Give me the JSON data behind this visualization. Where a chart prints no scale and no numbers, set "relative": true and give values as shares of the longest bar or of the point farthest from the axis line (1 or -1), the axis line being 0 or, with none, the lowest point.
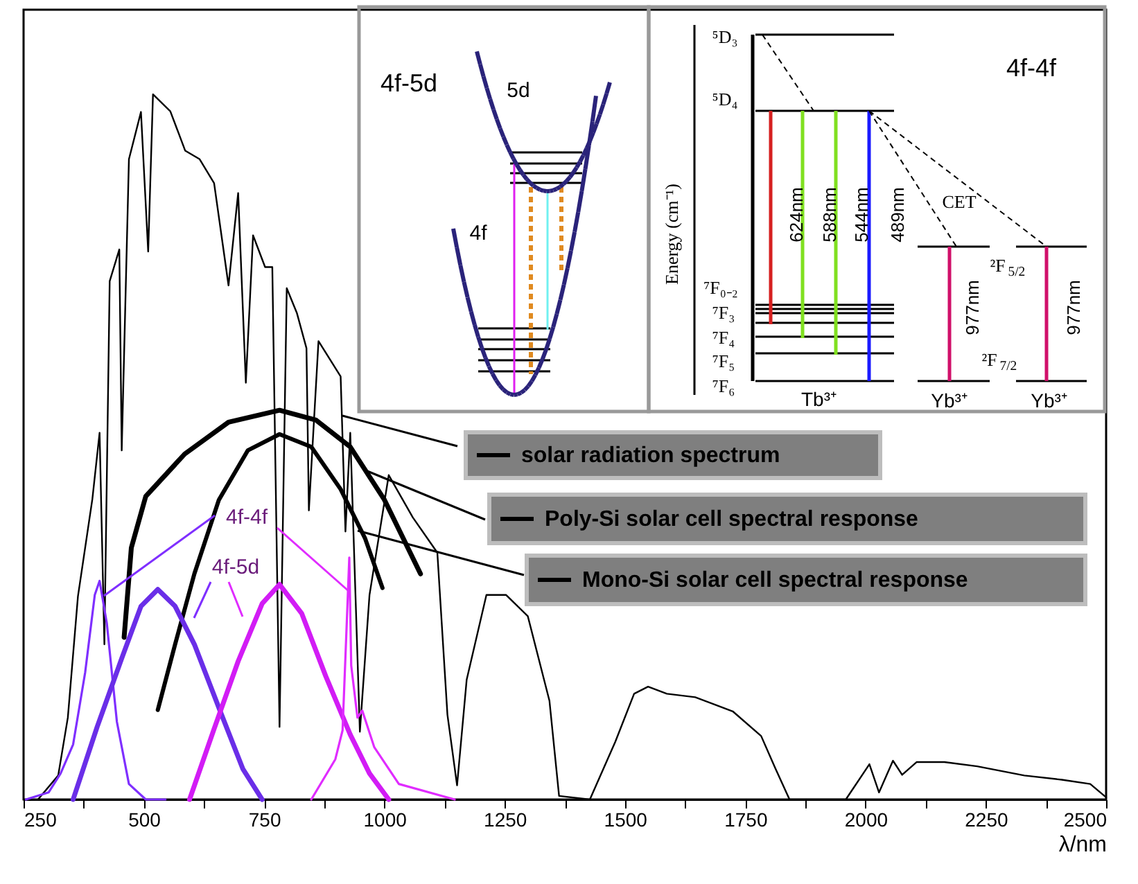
{
  "chart_data": {
    "type": "line",
    "relative": true,
    "xlabel": "λ/nm",
    "xlim": [
      250,
      2500
    ],
    "xticks": [
      250,
      {
        "value": 375,
        "label": null
      },
      500,
      {
        "value": 625,
        "label": null
      },
      750,
      {
        "value": 875,
        "label": null
      },
      1000,
      {
        "value": 1125,
        "label": null
      },
      1250,
      {
        "value": 1375,
        "label": null
      },
      1500,
      {
        "value": 1625,
        "label": null
      },
      1750,
      {
        "value": 1875,
        "label": null
      },
      2000,
      {
        "value": 2125,
        "label": null
      },
      2250,
      {
        "value": 2375,
        "label": null
      },
      2500
    ],
    "grid": false,
    "legend": "right",
    "marker": "none",
    "line_style": "solid",
    "series": [
      {
        "name": "solar radiation spectrum",
        "color": "#000000",
        "x": [
          280,
          322,
          342,
          363,
          393,
          408,
          418,
          429,
          449,
          454,
          469,
          494,
          509,
          519,
          555,
          586,
          616,
          646,
          676,
          696,
          712,
          727,
          752,
          767,
          782,
          797,
          818,
          838,
          843,
          863,
          909,
          919,
          929,
          949,
          969,
          1009,
          1059,
          1110,
          1131,
          1151,
          1171,
          1212,
          1253,
          1298,
          1343,
          1363,
          1427,
          1480,
          1519,
          1548,
          1587,
          1646,
          1724,
          1783,
          1812,
          1842,
          1959,
          2008,
          2028,
          2057,
          2076,
          2106,
          2164,
          2232,
          2330,
          2408,
          2467,
          2500
        ],
        "values": [
          0,
          0.034,
          0.116,
          0.288,
          0.426,
          0.52,
          0.22,
          0.735,
          0.78,
          0.495,
          0.908,
          0.975,
          0.777,
          1.0,
          0.976,
          0.92,
          0.908,
          0.874,
          0.729,
          0.86,
          0.591,
          0.8,
          0.755,
          0.755,
          0.103,
          0.725,
          0.69,
          0.64,
          0.41,
          0.65,
          0.6,
          0.38,
          0.52,
          0.096,
          0.29,
          0.46,
          0.4,
          0.35,
          0.12,
          0.02,
          0.17,
          0.29,
          0.29,
          0.26,
          0.14,
          0.005,
          0,
          0.082,
          0.15,
          0.16,
          0.15,
          0.145,
          0.125,
          0.09,
          0.045,
          0,
          0,
          0.05,
          0.01,
          0.055,
          0.035,
          0.053,
          0.053,
          0.047,
          0.034,
          0.028,
          0.022,
          0.003
        ]
      },
      {
        "name": "Poly-Si solar cell spectral response",
        "color": "#000000",
        "x": [
          459,
          474,
          504,
          585,
          676,
          782,
          858,
          929,
          1000,
          1075
        ],
        "values": [
          0.23,
          0.357,
          0.43,
          0.49,
          0.535,
          0.552,
          0.538,
          0.5,
          0.425,
          0.32
        ]
      },
      {
        "name": "Mono-Si solar cell spectral response",
        "color": "#000000",
        "x": [
          529,
          565,
          605,
          656,
          716,
          782,
          848,
          909,
          960,
          996
        ],
        "values": [
          0.127,
          0.22,
          0.32,
          0.425,
          0.495,
          0.518,
          0.5,
          0.44,
          0.37,
          0.3
        ]
      },
      {
        "color": "#7f2fff",
        "x": [
          255,
          302,
          327,
          353,
          378,
          398,
          408,
          423,
          444,
          469,
          504,
          545
        ],
        "values": [
          0,
          0.01,
          0.037,
          0.078,
          0.18,
          0.29,
          0.31,
          0.25,
          0.11,
          0.022,
          0,
          0
        ]
      },
      {
        "color": "#6a2ee8",
        "x": [
          353,
          403,
          454,
          494,
          529,
          565,
          605,
          656,
          706,
          746
        ],
        "values": [
          0,
          0.103,
          0.2,
          0.274,
          0.298,
          0.274,
          0.22,
          0.13,
          0.043,
          0
        ]
      },
      {
        "color": "#d21cf5",
        "x": [
          595,
          646,
          696,
          746,
          782,
          828,
          878,
          929,
          969,
          1009
        ],
        "values": [
          0,
          0.1,
          0.196,
          0.278,
          0.305,
          0.264,
          0.175,
          0.092,
          0.037,
          0
        ]
      },
      {
        "color": "#e02cff",
        "x": [
          848,
          898,
          913,
          920,
          927,
          931,
          944,
          954,
          979,
          1030,
          1146
        ],
        "values": [
          0,
          0.057,
          0.098,
          0.22,
          0.343,
          0.19,
          0.116,
          0.126,
          0.074,
          0.022,
          0
        ]
      }
    ],
    "annotations": [
      "4f-4f",
      "4f-5d",
      "4f-5d",
      "5d",
      "4f",
      "4f-4f",
      "Energy (cm⁻¹)",
      "⁵D₃",
      "⁵D₄",
      "⁷F₀₋₂",
      "⁷F₃",
      "⁷F₄",
      "⁷F₅",
      "⁷F₆",
      "624nm",
      "588nm",
      "544nm",
      "489nm",
      "CET",
      "²F$_{5/2}$",
      "²F$_{7/2}$",
      "977nm",
      "977nm",
      "Tb³⁺",
      "Yb³⁺",
      "Yb³⁺"
    ]
  }
}
